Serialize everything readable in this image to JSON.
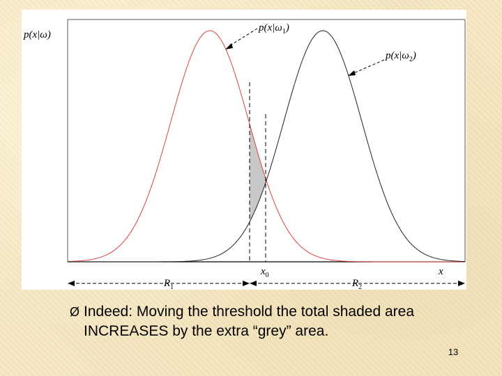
{
  "figure": {
    "ylabel": "p(x|ω)",
    "curve1_label": {
      "main": "p(x|ω",
      "sub": "1",
      "close": ")"
    },
    "curve2_label": {
      "main": "p(x|ω",
      "sub": "2",
      "close": ")"
    },
    "xaxis_label": "x",
    "threshold_label": {
      "main": "x",
      "sub": "0"
    },
    "region1_label": {
      "main": "R",
      "sub": "1"
    },
    "region2_label": {
      "main": "R",
      "sub": "2"
    },
    "curve1_color": "#d84040",
    "curve2_color": "#222222",
    "shade_color": "#c8c8c8"
  },
  "bullet": {
    "marker": "Ø",
    "text": "Indeed:  Moving the threshold the total shaded area INCREASES by the extra “grey” area."
  },
  "page_number": "13"
}
